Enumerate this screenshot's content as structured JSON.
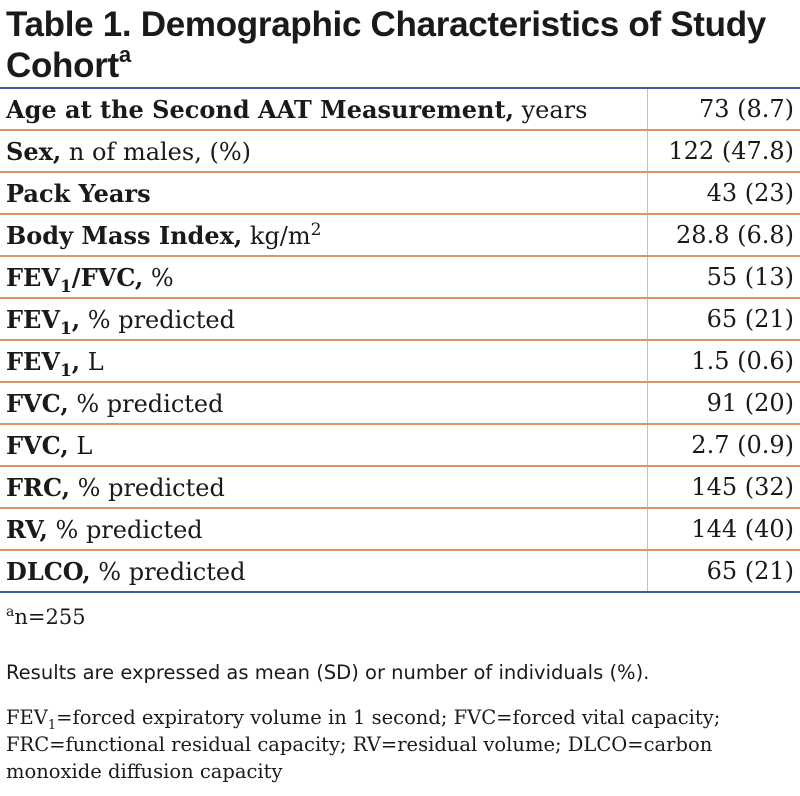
{
  "table": {
    "title": "Table 1. Demographic Characteristics of Study Cohort",
    "title_marker": "a",
    "rows": [
      {
        "label": "Age at the Second AAT Measurement,",
        "unit": " years",
        "value": "73 (8.7)"
      },
      {
        "label": "Sex,",
        "unit": " n of males, (%)",
        "value": "122 (47.8)"
      },
      {
        "label": "Pack Years",
        "unit": "",
        "value": "43 (23)"
      },
      {
        "label": "Body Mass Index,",
        "unit": " kg/m",
        "unit_sup": "2",
        "value": "28.8 (6.8)"
      },
      {
        "label_a": "FEV",
        "label_sub": "1",
        "label_b": "/FVC,",
        "unit": " %",
        "value": "55 (13)"
      },
      {
        "label_a": "FEV",
        "label_sub": "1",
        "label_b": ",",
        "unit": " % predicted",
        "value": "65 (21)"
      },
      {
        "label_a": "FEV",
        "label_sub": "1",
        "label_b": ",",
        "unit": " L",
        "value": "1.5 (0.6)"
      },
      {
        "label": "FVC,",
        "unit": " % predicted",
        "value": "91 (20)"
      },
      {
        "label": "FVC,",
        "unit": " L",
        "value": "2.7 (0.9)"
      },
      {
        "label": "FRC,",
        "unit": " % predicted",
        "value": "145 (32)"
      },
      {
        "label": "RV,",
        "unit": " % predicted",
        "value": "144 (40)"
      },
      {
        "label": "DLCO,",
        "unit": " % predicted",
        "value": "65 (21)"
      }
    ]
  },
  "footnotes": {
    "n_marker": "a",
    "n_text": "n=255",
    "results": "Results are expressed as mean (SD) or number of individuals (%).",
    "abbrev_a": "FEV",
    "abbrev_sub": "1",
    "abbrev_b": "=forced expiratory volume in 1 second; FVC=forced vital capacity; FRC=functional residual capacity; RV=residual volume; DLCO=carbon monoxide diffusion capacity"
  },
  "colors": {
    "rule_blue": "#3b5ba3",
    "row_rule_orange": "#e09466",
    "text": "#1a1a1a"
  }
}
